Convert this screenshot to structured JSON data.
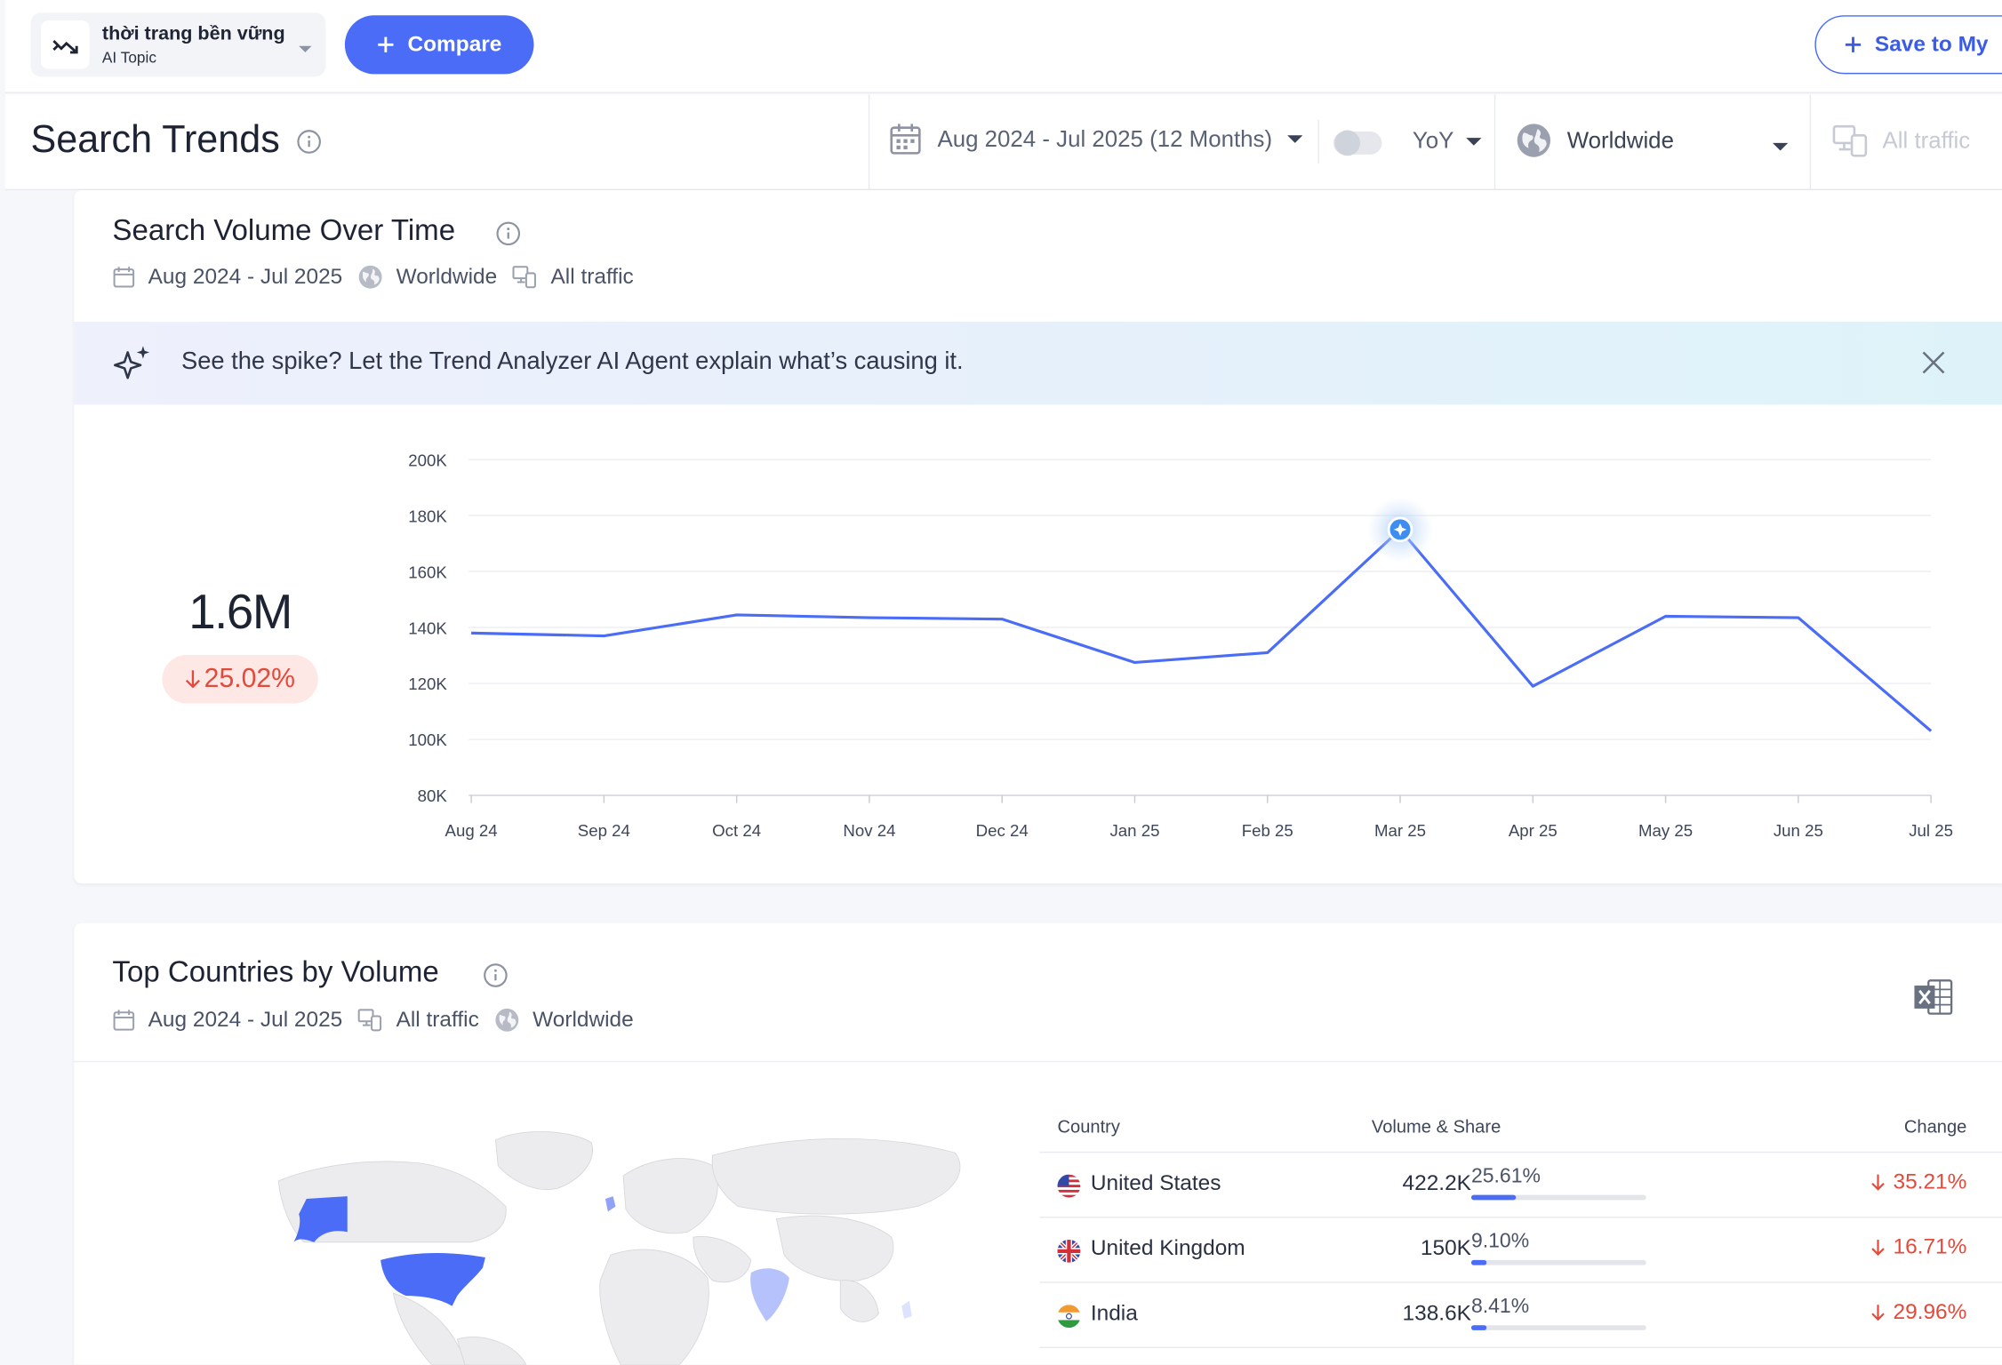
{
  "topbar": {
    "topic_name": "thời trang bền vững",
    "topic_type": "AI Topic",
    "compare_label": "Compare",
    "save_label": "Save to My"
  },
  "header": {
    "title": "Search Trends",
    "date_range": "Aug 2024 - Jul 2025 (12 Months)",
    "comparison": "YoY",
    "region": "Worldwide",
    "traffic": "All traffic"
  },
  "volume_card": {
    "title": "Search Volume Over Time",
    "meta": {
      "date": "Aug 2024 - Jul 2025",
      "region": "Worldwide",
      "traffic": "All traffic"
    },
    "ai_banner": "See the spike? Let the Trend Analyzer AI Agent explain what’s causing it.",
    "total": "1.6M",
    "change": "25.02%"
  },
  "chart_data": {
    "type": "line",
    "categories": [
      "Aug 24",
      "Sep 24",
      "Oct 24",
      "Nov 24",
      "Dec 24",
      "Jan 25",
      "Feb 25",
      "Mar 25",
      "Apr 25",
      "May 25",
      "Jun 25",
      "Jul 25"
    ],
    "series": [
      {
        "values": [
          138000,
          137000,
          144500,
          143500,
          143000,
          127500,
          131000,
          175000,
          119000,
          144000,
          143500,
          103000
        ]
      }
    ],
    "y_ticks": [
      "80K",
      "100K",
      "120K",
      "140K",
      "160K",
      "180K",
      "200K"
    ],
    "ylim": [
      80000,
      200000
    ],
    "highlight_index": 7,
    "grid": true,
    "line_color": "#4a6cf7"
  },
  "countries_card": {
    "title": "Top Countries by Volume",
    "meta": {
      "date": "Aug 2024 - Jul 2025",
      "traffic": "All traffic",
      "region": "Worldwide"
    },
    "columns": {
      "country": "Country",
      "volume": "Volume & Share",
      "change": "Change"
    },
    "rows": [
      {
        "country": "United States",
        "volume": "422.2K",
        "share": "25.61%",
        "share_value": 25.61,
        "change": "35.21%",
        "flag": "us"
      },
      {
        "country": "United Kingdom",
        "volume": "150K",
        "share": "9.10%",
        "share_value": 9.1,
        "change": "16.71%",
        "flag": "uk"
      },
      {
        "country": "India",
        "volume": "138.6K",
        "share": "8.41%",
        "share_value": 8.41,
        "change": "29.96%",
        "flag": "in"
      }
    ]
  },
  "colors": {
    "accent": "#4a6cf7",
    "negative": "#e34a3b",
    "negative_bg": "#fde8e6"
  }
}
